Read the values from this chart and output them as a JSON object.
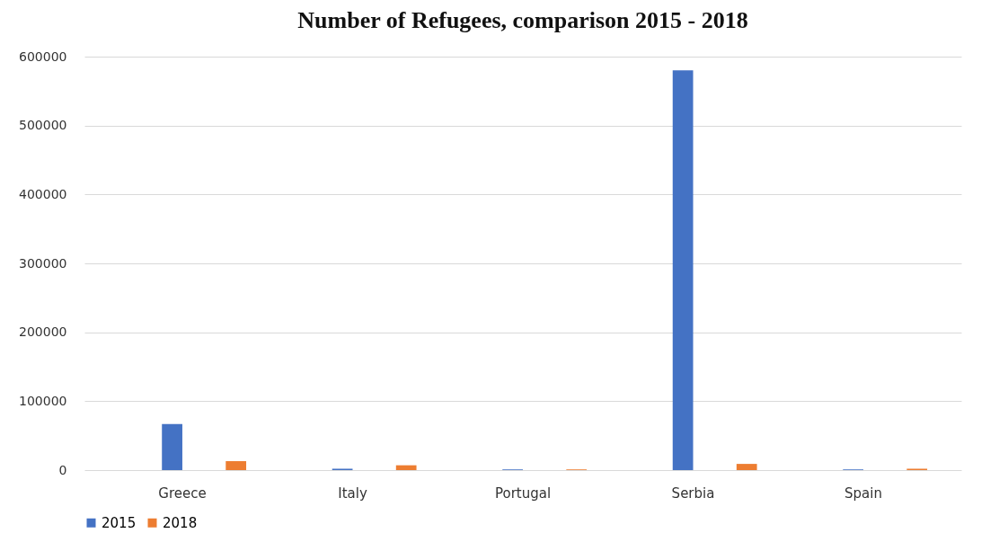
{
  "chart_data": {
    "type": "bar",
    "title": "Number of Refugees, comparison 2015 - 2018",
    "categories": [
      "Greece",
      "Italy",
      "Portugal",
      "Serbia",
      "Spain"
    ],
    "series": [
      {
        "name": "2015",
        "color": "#4472c4",
        "values": [
          67000,
          2000,
          1000,
          580000,
          1000
        ]
      },
      {
        "name": "2018",
        "color": "#ed7d31",
        "values": [
          13000,
          7000,
          1000,
          9000,
          2000
        ]
      }
    ],
    "ylim": [
      0,
      600000
    ],
    "yticks": [
      0,
      100000,
      200000,
      300000,
      400000,
      500000,
      600000
    ],
    "grid": "y",
    "legend": "bottom"
  }
}
